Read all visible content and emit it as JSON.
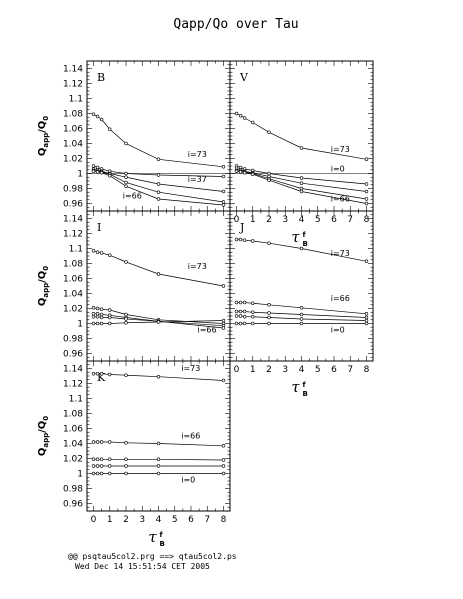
{
  "title": "Qapp/Qo over Tau",
  "footer": {
    "line1": "@@ psqtau5col2.prg ==> qtau5col2.ps",
    "line2": "Wed Dec 14 15:51:54 CET 2005"
  },
  "chart_data": [
    {
      "type": "line",
      "panel": "B",
      "x": [
        0,
        0.25,
        0.5,
        1,
        2,
        4,
        8
      ],
      "ylim": [
        0.95,
        1.15
      ],
      "xlim": [
        -0.4,
        8.4
      ],
      "yticks": [
        "0.96",
        "0.98",
        "1",
        "1.02",
        "1.04",
        "1.06",
        "1.08",
        "1.1",
        "1.12",
        "1.14"
      ],
      "xticks": [],
      "ylabel": "Q_app/Q_0",
      "hline": 1,
      "series": [
        {
          "values": [
            1.079,
            1.076,
            1.072,
            1.059,
            1.04,
            1.019,
            1.009
          ]
        },
        {
          "values": [
            1.01,
            1.008,
            1.006,
            1.003,
            1.0,
            0.998,
            0.996
          ]
        },
        {
          "values": [
            1.006,
            1.005,
            1.003,
            1.0,
            0.995,
            0.986,
            0.976
          ]
        },
        {
          "values": [
            1.004,
            1.003,
            1.002,
            0.999,
            0.988,
            0.975,
            0.962
          ]
        },
        {
          "values": [
            1.003,
            1.002,
            1.001,
            0.997,
            0.983,
            0.966,
            0.958
          ]
        }
      ],
      "annotations": [
        {
          "text": "i=73",
          "x": 5.8,
          "y": 1.022
        },
        {
          "text": "i=37",
          "x": 5.8,
          "y": 0.989
        },
        {
          "text": "i=66",
          "x": 1.8,
          "y": 0.967
        }
      ]
    },
    {
      "type": "line",
      "panel": "V",
      "x": [
        0,
        0.25,
        0.5,
        1,
        2,
        4,
        8
      ],
      "ylim": [
        0.95,
        1.15
      ],
      "xlim": [
        -0.4,
        8.4
      ],
      "yticks": [],
      "xticks": [
        "0",
        "1",
        "2",
        "3",
        "4",
        "5",
        "6",
        "7",
        "8"
      ],
      "hline": 1,
      "series": [
        {
          "values": [
            1.08,
            1.077,
            1.074,
            1.068,
            1.055,
            1.034,
            1.019
          ]
        },
        {
          "values": [
            1.01,
            1.008,
            1.006,
            1.004,
            1.0,
            0.994,
            0.986
          ]
        },
        {
          "values": [
            1.007,
            1.005,
            1.003,
            1.001,
            0.996,
            0.987,
            0.976
          ]
        },
        {
          "values": [
            1.004,
            1.003,
            1.002,
            1.0,
            0.993,
            0.98,
            0.966
          ]
        },
        {
          "values": [
            1.003,
            1.002,
            1.001,
            0.999,
            0.991,
            0.976,
            0.96
          ]
        }
      ],
      "annotations": [
        {
          "text": "i=73",
          "x": 5.8,
          "y": 1.029
        },
        {
          "text": "i=0",
          "x": 5.8,
          "y": 1.003
        },
        {
          "text": "i=66",
          "x": 5.8,
          "y": 0.963
        }
      ]
    },
    {
      "type": "line",
      "panel": "I",
      "x": [
        0,
        0.25,
        0.5,
        1,
        2,
        4,
        8
      ],
      "ylim": [
        0.95,
        1.15
      ],
      "xlim": [
        -0.4,
        8.4
      ],
      "yticks": [
        "0.96",
        "0.98",
        "1",
        "1.02",
        "1.04",
        "1.06",
        "1.08",
        "1.1",
        "1.12",
        "1.14"
      ],
      "xticks": [],
      "ylabel": "Q_app/Q_0",
      "series": [
        {
          "values": [
            1.097,
            1.095,
            1.094,
            1.091,
            1.082,
            1.066,
            1.05
          ]
        },
        {
          "values": [
            1.021,
            1.02,
            1.019,
            1.018,
            1.012,
            1.005,
            1.0
          ]
        },
        {
          "values": [
            1.013,
            1.013,
            1.012,
            1.011,
            1.008,
            1.003,
            0.997
          ]
        },
        {
          "values": [
            1.009,
            1.009,
            1.008,
            1.008,
            1.006,
            1.003,
            0.994
          ]
        },
        {
          "values": [
            1.0,
            1.0,
            1.0,
            1.0,
            1.001,
            1.002,
            1.004
          ]
        }
      ],
      "annotations": [
        {
          "text": "i=73",
          "x": 5.8,
          "y": 1.073
        },
        {
          "text": "i=66",
          "x": 6.4,
          "y": 0.988
        }
      ]
    },
    {
      "type": "line",
      "panel": "J",
      "x": [
        0,
        0.25,
        0.5,
        1,
        2,
        4,
        8
      ],
      "ylim": [
        0.95,
        1.15
      ],
      "xlim": [
        -0.4,
        8.4
      ],
      "yticks": [],
      "xticks": [
        "0",
        "1",
        "2",
        "3",
        "4",
        "5",
        "6",
        "7",
        "8"
      ],
      "series": [
        {
          "values": [
            1.112,
            1.112,
            1.111,
            1.11,
            1.107,
            1.1,
            1.083
          ]
        },
        {
          "values": [
            1.028,
            1.028,
            1.028,
            1.027,
            1.025,
            1.021,
            1.013
          ]
        },
        {
          "values": [
            1.016,
            1.016,
            1.016,
            1.015,
            1.014,
            1.012,
            1.008
          ]
        },
        {
          "values": [
            1.01,
            1.01,
            1.009,
            1.009,
            1.008,
            1.006,
            1.004
          ]
        },
        {
          "values": [
            1.0,
            1.0,
            1.0,
            1.0,
            1.0,
            1.0,
            1.0
          ]
        }
      ],
      "annotations": [
        {
          "text": "i=73",
          "x": 5.8,
          "y": 1.09
        },
        {
          "text": "i=66",
          "x": 5.8,
          "y": 1.03
        },
        {
          "text": "i=0",
          "x": 5.8,
          "y": 0.988
        }
      ]
    },
    {
      "type": "line",
      "panel": "K",
      "x": [
        0,
        0.25,
        0.5,
        1,
        2,
        4,
        8
      ],
      "ylim": [
        0.95,
        1.15
      ],
      "xlim": [
        -0.4,
        8.4
      ],
      "yticks": [
        "0.96",
        "0.98",
        "1",
        "1.02",
        "1.04",
        "1.06",
        "1.08",
        "1.1",
        "1.12",
        "1.14"
      ],
      "xticks": [
        "0",
        "1",
        "2",
        "3",
        "4",
        "5",
        "6",
        "7",
        "8"
      ],
      "ylabel": "Q_app/Q_0",
      "xlabel": "τ_B^f",
      "series": [
        {
          "values": [
            1.133,
            1.133,
            1.133,
            1.132,
            1.131,
            1.129,
            1.124
          ]
        },
        {
          "values": [
            1.042,
            1.042,
            1.042,
            1.042,
            1.041,
            1.04,
            1.037
          ]
        },
        {
          "values": [
            1.019,
            1.019,
            1.019,
            1.019,
            1.019,
            1.019,
            1.018
          ]
        },
        {
          "values": [
            1.01,
            1.01,
            1.01,
            1.01,
            1.01,
            1.01,
            1.01
          ]
        },
        {
          "values": [
            1.0,
            1.0,
            1.0,
            1.0,
            1.0,
            1.0,
            1.0
          ]
        }
      ],
      "annotations": [
        {
          "text": "i=73",
          "x": 5.4,
          "y": 1.137
        },
        {
          "text": "i=66",
          "x": 5.4,
          "y": 1.047
        },
        {
          "text": "i=0",
          "x": 5.4,
          "y": 0.988
        }
      ]
    }
  ]
}
